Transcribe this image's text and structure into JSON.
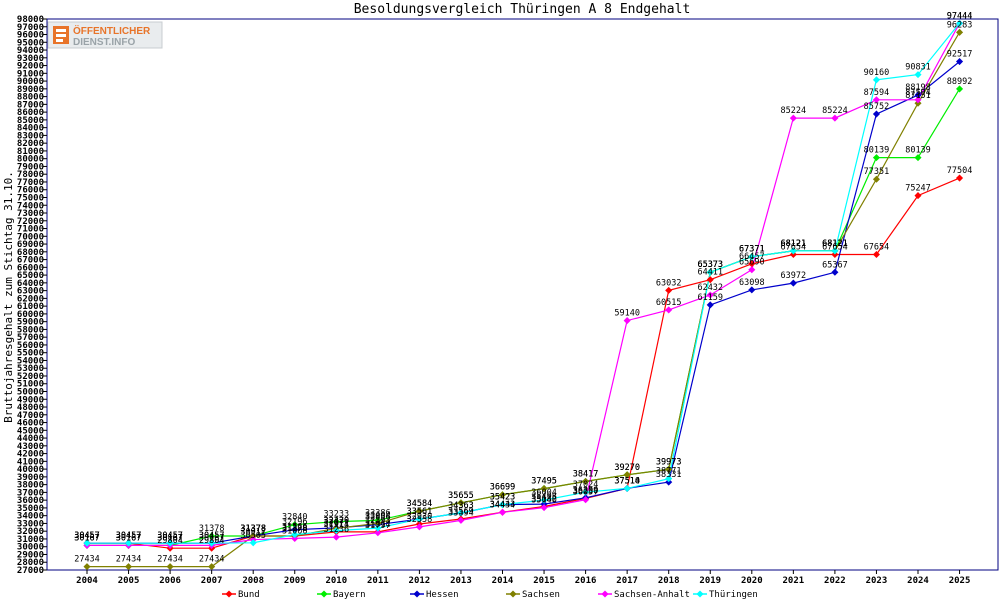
{
  "logo": {
    "line1": "ÖFFENTLICHER",
    "line2": "DIENST.INFO"
  },
  "chart_data": {
    "type": "line",
    "title": "Besoldungsvergleich Thüringen A 8 Endgehalt",
    "ylabel": "Bruttojahresgehalt zum Stichtag 31.10.",
    "xlabel": "",
    "ylim": [
      27000,
      98000
    ],
    "ytick_step": 1000,
    "grid": false,
    "legend_position": "bottom",
    "x": [
      "2004",
      "2005",
      "2006",
      "2007",
      "2008",
      "2009",
      "2010",
      "2011",
      "2012",
      "2013",
      "2014",
      "2015",
      "2016",
      "2017",
      "2018",
      "2019",
      "2020",
      "2021",
      "2022",
      "2023",
      "2024",
      "2025"
    ],
    "series": [
      {
        "name": "Bund",
        "color": "#ff0000",
        "values": [
          30457,
          30457,
          29804,
          29804,
          31378,
          31378,
          31914,
          31914,
          32930,
          33569,
          34443,
          35182,
          36230,
          37510,
          63032,
          64411,
          66457,
          67654,
          67654,
          67654,
          75247,
          77504
        ]
      },
      {
        "name": "Bayern",
        "color": "#00ee00",
        "values": [
          30167,
          30167,
          30167,
          31378,
          31378,
          32840,
          33233,
          33386,
          34584,
          35655,
          36699,
          37495,
          38417,
          39270,
          39973,
          65373,
          67371,
          68121,
          68121,
          80139,
          80139,
          88992
        ]
      },
      {
        "name": "Hessen",
        "color": "#0000cc",
        "values": [
          30457,
          30457,
          30457,
          30457,
          31378,
          32196,
          32420,
          32856,
          33561,
          34363,
          35423,
          35498,
          36309,
          37514,
          38331,
          61159,
          63098,
          63972,
          65367,
          85752,
          88198,
          92517
        ]
      },
      {
        "name": "Sachsen",
        "color": "#808000",
        "values": [
          27434,
          27434,
          27434,
          27434,
          31378,
          31378,
          32379,
          33004,
          34584,
          35655,
          36699,
          37495,
          38417,
          39270,
          39973,
          65373,
          67371,
          68121,
          68121,
          77351,
          87151,
          96283
        ]
      },
      {
        "name": "Sachsen-Anhalt",
        "color": "#ff00ff",
        "values": [
          30167,
          30167,
          30167,
          30167,
          30917,
          31066,
          31236,
          31797,
          32558,
          33394,
          34434,
          35040,
          36057,
          59140,
          60515,
          62432,
          65690,
          85224,
          85224,
          87594,
          87594,
          97444
        ]
      },
      {
        "name": "Thüringen",
        "color": "#00ffff",
        "values": [
          30457,
          30457,
          30457,
          30457,
          30505,
          31566,
          32071,
          32393,
          33561,
          34363,
          35423,
          36004,
          37024,
          37514,
          38771,
          65373,
          67371,
          68121,
          68121,
          90160,
          90831,
          97444
        ]
      }
    ]
  }
}
